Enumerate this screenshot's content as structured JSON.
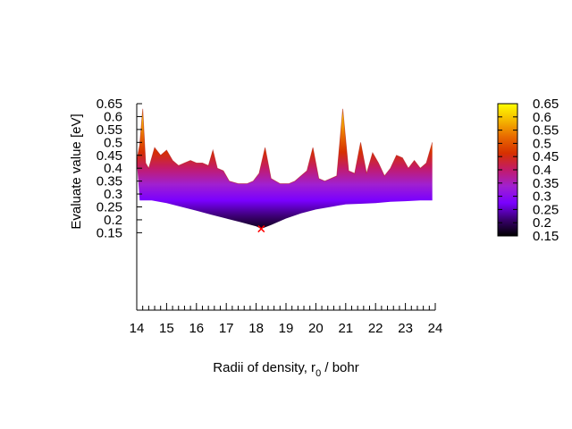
{
  "chart_data": {
    "type": "surface",
    "title": "",
    "xlabel_main": "Radii of density, r",
    "xlabel_sub": "0",
    "xlabel_tail": " / bohr",
    "ylabel": "Evaluate value [eV]",
    "xlim": [
      14,
      24
    ],
    "ylim": [
      -0.15,
      0.65
    ],
    "x_ticks": [
      14,
      15,
      16,
      17,
      18,
      19,
      20,
      21,
      22,
      23,
      24
    ],
    "x_tick_labels": [
      "14",
      "15",
      "16",
      "17",
      "18",
      "19",
      "20",
      "21",
      "22",
      "23",
      "24"
    ],
    "y_ticks": [
      0.15,
      0.2,
      0.25,
      0.3,
      0.35,
      0.4,
      0.45,
      0.5,
      0.55,
      0.6,
      0.65
    ],
    "y_tick_labels": [
      "0.15",
      "0.2",
      "0.25",
      "0.3",
      "0.35",
      "0.4",
      "0.45",
      "0.5",
      "0.55",
      "0.6",
      "0.65"
    ],
    "x_minor_step": 0.2,
    "colorbar": {
      "range": [
        0.15,
        0.65
      ],
      "ticks": [
        0.15,
        0.2,
        0.25,
        0.3,
        0.35,
        0.4,
        0.45,
        0.5,
        0.55,
        0.6,
        0.65
      ],
      "tick_labels": [
        "0.15",
        "0.2",
        "0.25",
        "0.3",
        "0.35",
        "0.4",
        "0.45",
        "0.5",
        "0.55",
        "0.6",
        "0.65"
      ],
      "palette": [
        "#000000",
        "#3a0070",
        "#7a00ff",
        "#a020d0",
        "#c21b6a",
        "#d63000",
        "#e86a00",
        "#f5b800",
        "#ffff00"
      ]
    },
    "top_edge": {
      "x": [
        14.0,
        14.1,
        14.2,
        14.3,
        14.4,
        14.6,
        14.8,
        15.0,
        15.2,
        15.4,
        15.6,
        15.8,
        16.0,
        16.2,
        16.4,
        16.55,
        16.7,
        16.9,
        17.1,
        17.4,
        17.7,
        17.9,
        18.1,
        18.3,
        18.5,
        18.8,
        19.1,
        19.3,
        19.5,
        19.7,
        19.9,
        20.1,
        20.3,
        20.5,
        20.7,
        20.9,
        21.1,
        21.3,
        21.5,
        21.7,
        21.9,
        22.1,
        22.3,
        22.5,
        22.7,
        22.9,
        23.1,
        23.3,
        23.5,
        23.7,
        23.9
      ],
      "y": [
        0.43,
        0.49,
        0.63,
        0.42,
        0.4,
        0.48,
        0.45,
        0.47,
        0.43,
        0.41,
        0.42,
        0.43,
        0.42,
        0.42,
        0.41,
        0.47,
        0.4,
        0.39,
        0.35,
        0.34,
        0.34,
        0.35,
        0.38,
        0.48,
        0.36,
        0.34,
        0.34,
        0.35,
        0.37,
        0.39,
        0.48,
        0.36,
        0.35,
        0.36,
        0.37,
        0.63,
        0.39,
        0.38,
        0.5,
        0.38,
        0.46,
        0.42,
        0.37,
        0.4,
        0.45,
        0.44,
        0.4,
        0.43,
        0.4,
        0.42,
        0.5
      ]
    },
    "bottom_edge": {
      "x": [
        14.1,
        14.5,
        15.0,
        15.5,
        16.0,
        16.5,
        17.0,
        17.5,
        18.0,
        18.17,
        18.5,
        19.0,
        19.5,
        20.0,
        20.5,
        21.0,
        21.5,
        22.0,
        22.5,
        23.0,
        23.5,
        23.9
      ],
      "y": [
        0.275,
        0.275,
        0.265,
        0.25,
        0.235,
        0.22,
        0.205,
        0.19,
        0.175,
        0.165,
        0.18,
        0.205,
        0.225,
        0.24,
        0.25,
        0.26,
        0.262,
        0.265,
        0.27,
        0.272,
        0.275,
        0.275
      ]
    },
    "minimum": {
      "x": 18.17,
      "y": 0.165
    },
    "grid": false,
    "legend": "none"
  }
}
